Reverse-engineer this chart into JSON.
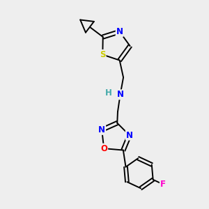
{
  "background_color": "#eeeeee",
  "bond_color": "#000000",
  "atom_colors": {
    "N": "#0000ff",
    "S": "#cccc00",
    "O": "#ff0000",
    "F": "#ff00cc",
    "H": "#44aaaa",
    "C": "#000000"
  },
  "font_size": 8.5,
  "lw": 1.4
}
